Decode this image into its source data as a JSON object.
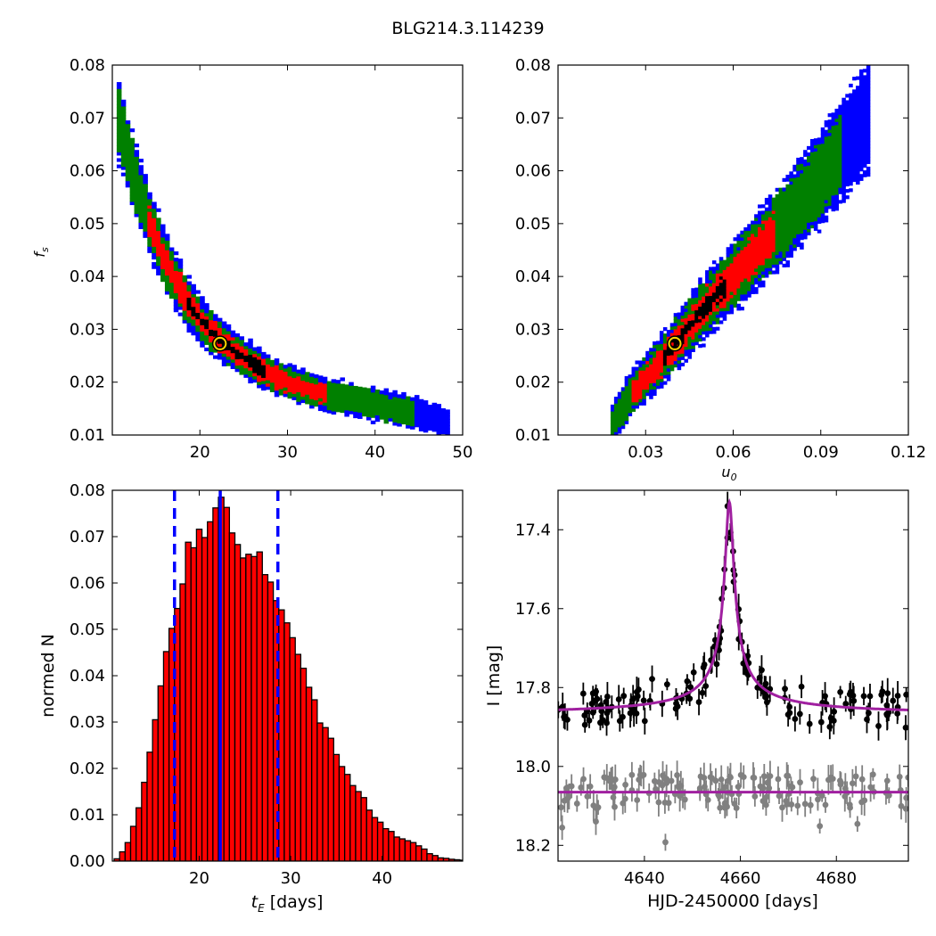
{
  "figure_title": "BLG214.3.114239",
  "chart_data": [
    {
      "id": "fs_vs_tE",
      "type": "heatmap",
      "xlim": [
        10,
        50
      ],
      "ylim": [
        0.01,
        0.08
      ],
      "xticks": [
        "20",
        "30",
        "40",
        "50"
      ],
      "yticks": [
        "0.01",
        "0.02",
        "0.03",
        "0.04",
        "0.05",
        "0.06",
        "0.07",
        "0.08"
      ],
      "ylabel": "f_s",
      "levels": [
        {
          "name": "outer",
          "color": "#0000ff"
        },
        {
          "name": "middle",
          "color": "#008000"
        },
        {
          "name": "inner",
          "color": "#ff0000"
        },
        {
          "name": "core",
          "color": "#000000"
        }
      ],
      "ridge": [
        [
          10.5,
          0.069
        ],
        [
          12,
          0.06
        ],
        [
          14,
          0.05
        ],
        [
          16,
          0.042
        ],
        [
          18,
          0.036
        ],
        [
          20,
          0.031
        ],
        [
          22.3,
          0.0273
        ],
        [
          25,
          0.024
        ],
        [
          28,
          0.021
        ],
        [
          31,
          0.019
        ],
        [
          35,
          0.017
        ],
        [
          40,
          0.0155
        ],
        [
          45,
          0.0135
        ],
        [
          48,
          0.012
        ]
      ],
      "best_fit": {
        "x": 22.3,
        "y": 0.0273
      }
    },
    {
      "id": "fs_vs_u0",
      "type": "heatmap",
      "xlim": [
        0,
        0.12
      ],
      "ylim": [
        0.01,
        0.08
      ],
      "xticks": [
        "0.03",
        "0.06",
        "0.09",
        "0.12"
      ],
      "yticks": [
        "0.01",
        "0.02",
        "0.03",
        "0.04",
        "0.05",
        "0.06",
        "0.07",
        "0.08"
      ],
      "xlabel": "u_0",
      "ridge": [
        [
          0.018,
          0.012
        ],
        [
          0.025,
          0.018
        ],
        [
          0.032,
          0.022
        ],
        [
          0.04,
          0.0273
        ],
        [
          0.05,
          0.034
        ],
        [
          0.06,
          0.04
        ],
        [
          0.07,
          0.046
        ],
        [
          0.08,
          0.052
        ],
        [
          0.09,
          0.059
        ],
        [
          0.1,
          0.066
        ],
        [
          0.106,
          0.07
        ]
      ],
      "best_fit": {
        "x": 0.04,
        "y": 0.0273
      }
    },
    {
      "id": "tE_histogram",
      "type": "bar",
      "xlim": [
        10.5,
        48.8
      ],
      "ylim": [
        0,
        0.08
      ],
      "xticks": [
        "20",
        "30",
        "40"
      ],
      "yticks": [
        "0.00",
        "0.01",
        "0.02",
        "0.03",
        "0.04",
        "0.05",
        "0.06",
        "0.07",
        "0.08"
      ],
      "xlabel_main": "t",
      "xlabel_sub": "E",
      "xlabel_unit": " [days]",
      "ylabel": "normed N",
      "bar_color": "#ff0000",
      "bin_start": 10.7,
      "bin_width": 0.6,
      "values": [
        0.0005,
        0.002,
        0.004,
        0.0075,
        0.0115,
        0.017,
        0.0235,
        0.0305,
        0.0378,
        0.0452,
        0.0502,
        0.0545,
        0.0598,
        0.0688,
        0.0676,
        0.0716,
        0.0698,
        0.0732,
        0.0762,
        0.0785,
        0.0763,
        0.0708,
        0.0683,
        0.0654,
        0.0662,
        0.0657,
        0.0667,
        0.0618,
        0.0602,
        0.0562,
        0.0542,
        0.0514,
        0.0482,
        0.0446,
        0.0416,
        0.0375,
        0.0348,
        0.0298,
        0.0288,
        0.0265,
        0.023,
        0.0204,
        0.0187,
        0.0163,
        0.015,
        0.0137,
        0.011,
        0.0094,
        0.0084,
        0.007,
        0.0064,
        0.0052,
        0.0048,
        0.0044,
        0.004,
        0.0033,
        0.0026,
        0.0016,
        0.0012,
        0.0007,
        0.0006,
        0.0004,
        0.0003,
        0.0002
      ],
      "median": 22.3,
      "interval": [
        17.3,
        28.6
      ],
      "line_color": "#0000ff"
    },
    {
      "id": "light_curve",
      "type": "scatter",
      "xlim": [
        4622,
        4695
      ],
      "ylim": [
        18.24,
        17.3
      ],
      "xticks": [
        "4640",
        "4660",
        "4680"
      ],
      "yticks": [
        "17.4",
        "17.6",
        "17.8",
        "18.0",
        "18.2"
      ],
      "xlabel": "HJD-2450000 [days]",
      "ylabel": "I [mag]",
      "model_color": "#a020a0",
      "model": {
        "t0": 4657.7,
        "baseline": 17.87,
        "peak": 17.33,
        "width": 0.9
      },
      "series": [
        {
          "color": "#000000",
          "baseline": 17.87
        },
        {
          "color": "#808080",
          "baseline": 18.065
        }
      ]
    }
  ]
}
